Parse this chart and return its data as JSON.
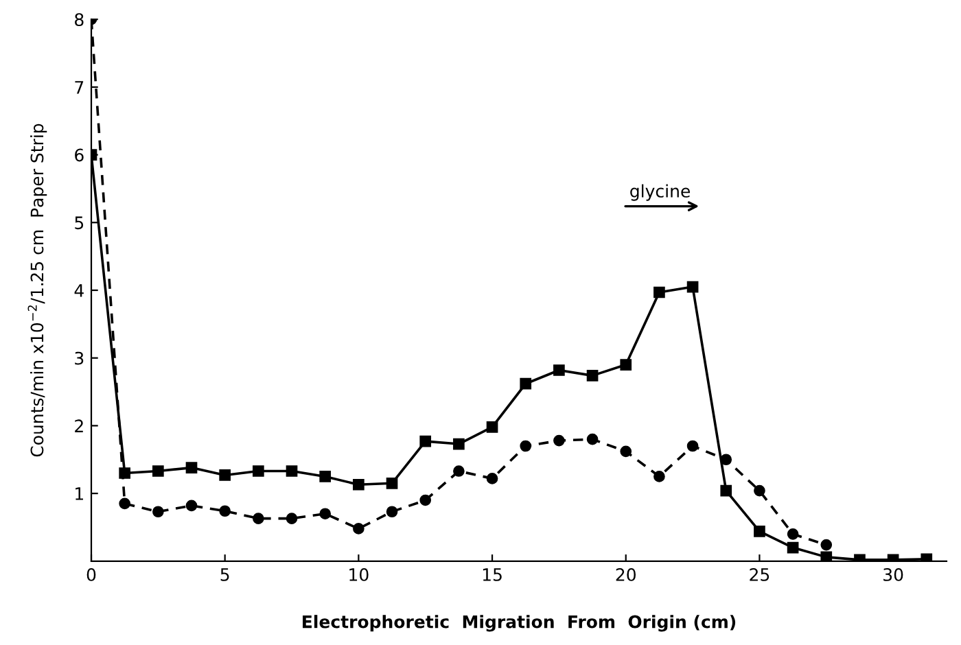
{
  "chart_data": {
    "type": "line",
    "xlabel": "Electrophoretic  Migration  From  Origin (cm)",
    "ylabel": "Counts/min x10$^{−2}$/1.25 cm  Paper Strip",
    "xlim": [
      0,
      32
    ],
    "xticks": [
      0,
      5,
      10,
      15,
      20,
      25,
      30
    ],
    "ylim": [
      0,
      8
    ],
    "yticks": [
      1,
      2,
      3,
      4,
      5,
      6,
      7,
      8
    ],
    "grid": false,
    "legend": false,
    "annotations": [
      "glycine"
    ],
    "series": [
      {
        "color": "#000000",
        "marker": "square",
        "line_style": "solid",
        "x": [
          0,
          1.25,
          2.5,
          3.75,
          5,
          6.25,
          7.5,
          8.75,
          10,
          11.25,
          12.5,
          13.75,
          15,
          16.25,
          17.5,
          18.75,
          20,
          21.25,
          22.5,
          23.75,
          25,
          26.25,
          27.5,
          28.75,
          30,
          31.25
        ],
        "values": [
          6.0,
          1.3,
          1.33,
          1.38,
          1.27,
          1.33,
          1.33,
          1.25,
          1.13,
          1.15,
          1.77,
          1.73,
          1.98,
          2.62,
          2.82,
          2.74,
          2.9,
          3.97,
          4.05,
          1.04,
          0.44,
          0.2,
          0.06,
          0.02,
          0.02,
          0.03
        ]
      },
      {
        "color": "#000000",
        "marker": "circle",
        "line_style": "dashed",
        "x": [
          0,
          1.25,
          2.5,
          3.75,
          5,
          6.25,
          7.5,
          8.75,
          10,
          11.25,
          12.5,
          13.75,
          15,
          16.25,
          17.5,
          18.75,
          20,
          21.25,
          22.5,
          23.75,
          25,
          26.25,
          27.5
        ],
        "values": [
          8.0,
          0.85,
          0.73,
          0.82,
          0.74,
          0.63,
          0.63,
          0.7,
          0.48,
          0.73,
          0.9,
          1.33,
          1.22,
          1.7,
          1.78,
          1.8,
          1.62,
          1.25,
          1.7,
          1.5,
          1.04,
          0.4,
          0.24
        ]
      }
    ]
  }
}
